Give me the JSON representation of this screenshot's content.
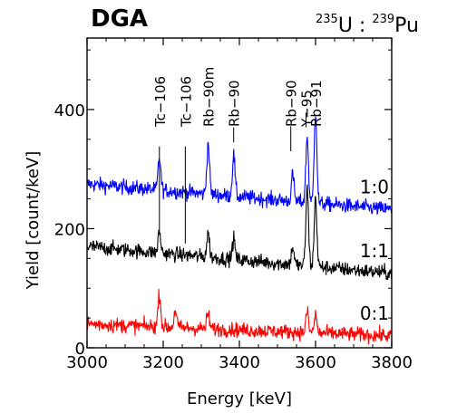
{
  "panel_label": "DGA",
  "ratio_label": {
    "iso1": "235",
    "el1": "U",
    "sep": " : ",
    "iso2": "239",
    "el2": "Pu"
  },
  "chart_data": {
    "type": "line",
    "xlabel": "Energy [keV]",
    "ylabel": "Yield [count/keV]",
    "xlim": [
      3000,
      3800
    ],
    "ylim": [
      0,
      520
    ],
    "xticks": [
      3000,
      3200,
      3400,
      3600,
      3800
    ],
    "yticks": [
      0,
      200,
      400
    ],
    "grid": false,
    "series": [
      {
        "name": "1:0",
        "color": "#0000ff",
        "baseline_start": 275,
        "baseline_end": 232,
        "peaks": [
          [
            3190,
            55
          ],
          [
            3318,
            85
          ],
          [
            3385,
            70
          ],
          [
            3540,
            45
          ],
          [
            3578,
            110
          ],
          [
            3600,
            155
          ]
        ]
      },
      {
        "name": "1:1",
        "color": "#000000",
        "baseline_start": 170,
        "baseline_end": 125,
        "peaks": [
          [
            3190,
            35
          ],
          [
            3318,
            40
          ],
          [
            3385,
            35
          ],
          [
            3540,
            30
          ],
          [
            3578,
            130
          ],
          [
            3600,
            115
          ]
        ]
      },
      {
        "name": "0:1",
        "color": "#ff0000",
        "baseline_start": 40,
        "baseline_end": 20,
        "peaks": [
          [
            3190,
            55
          ],
          [
            3232,
            30
          ],
          [
            3318,
            25
          ],
          [
            3578,
            35
          ],
          [
            3600,
            30
          ]
        ]
      }
    ],
    "annotations": [
      {
        "label": "Tc−106",
        "x": 3190,
        "line_bottom": 195,
        "line_top": 338
      },
      {
        "label": "Tc−106",
        "x": 3258,
        "line_bottom": 175,
        "line_top": 338
      },
      {
        "label": "Rb−90m",
        "x": 3318,
        "line_bottom": null,
        "line_top": null
      },
      {
        "label": "Rb−90",
        "x": 3385,
        "line_bottom": 345,
        "line_top": 370
      },
      {
        "label": "Rb−90",
        "x": 3535,
        "line_bottom": 330,
        "line_top": 372
      },
      {
        "label": "Y−95",
        "x": 3575,
        "line_bottom": 370,
        "line_top": 395
      },
      {
        "label": "Rb−91",
        "x": 3600,
        "line_bottom": null,
        "line_top": null
      }
    ]
  }
}
